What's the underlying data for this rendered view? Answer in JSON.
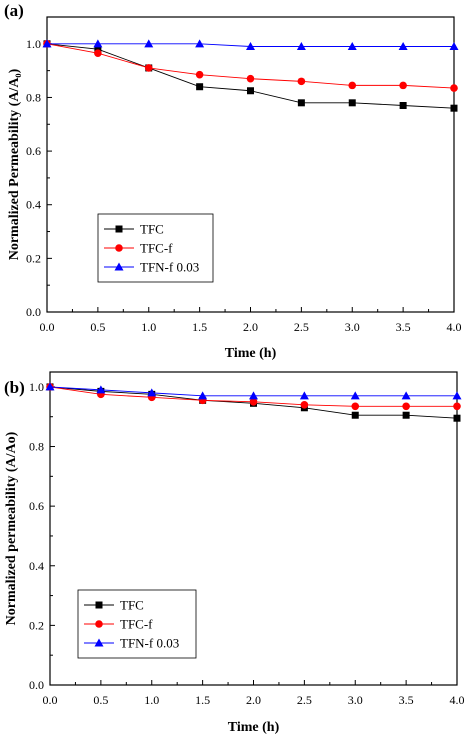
{
  "chart_data": [
    {
      "type": "line",
      "panel": "(a)",
      "xlabel": "Time (h)",
      "ylabel": "Normalized Permeability (A/A₀)",
      "xlim": [
        0,
        4
      ],
      "ylim": [
        0,
        1.1
      ],
      "x_ticks": [
        "0.0",
        "0.5",
        "1.0",
        "1.5",
        "2.0",
        "2.5",
        "3.0",
        "3.5",
        "4.0"
      ],
      "y_ticks": [
        "0.0",
        "0.2",
        "0.4",
        "0.6",
        "0.8",
        "1.0"
      ],
      "x": [
        0,
        0.5,
        1.0,
        1.5,
        2.0,
        2.5,
        3.0,
        3.5,
        4.0
      ],
      "series": [
        {
          "name": "TFC",
          "values": [
            1.0,
            0.98,
            0.91,
            0.84,
            0.825,
            0.78,
            0.78,
            0.77,
            0.76
          ],
          "color": "#000000",
          "marker": "square"
        },
        {
          "name": "TFC-f",
          "values": [
            1.0,
            0.965,
            0.91,
            0.885,
            0.87,
            0.86,
            0.845,
            0.845,
            0.835
          ],
          "color": "#ff0000",
          "marker": "circle"
        },
        {
          "name": "TFN-f 0.03",
          "values": [
            1.0,
            1.0,
            1.0,
            1.0,
            0.99,
            0.99,
            0.99,
            0.99,
            0.99
          ],
          "color": "#0000ff",
          "marker": "triangle"
        }
      ],
      "legend_position": "lower-left",
      "grid": false
    },
    {
      "type": "line",
      "panel": "(b)",
      "xlabel": "Time (h)",
      "ylabel": "Normalized permeability (A/Ao)",
      "xlim": [
        0,
        4
      ],
      "ylim": [
        0,
        1.05
      ],
      "x_ticks": [
        "0.0",
        "0.5",
        "1.0",
        "1.5",
        "2.0",
        "2.5",
        "3.0",
        "3.5",
        "4.0"
      ],
      "y_ticks": [
        "0.0",
        "0.2",
        "0.4",
        "0.6",
        "0.8",
        "1.0"
      ],
      "x": [
        0,
        0.5,
        1.0,
        1.5,
        2.0,
        2.5,
        3.0,
        3.5,
        4.0
      ],
      "series": [
        {
          "name": "TFC",
          "values": [
            1.0,
            0.985,
            0.975,
            0.955,
            0.945,
            0.93,
            0.905,
            0.905,
            0.895
          ],
          "color": "#000000",
          "marker": "square"
        },
        {
          "name": "TFC-f",
          "values": [
            1.0,
            0.975,
            0.965,
            0.955,
            0.95,
            0.94,
            0.935,
            0.935,
            0.935
          ],
          "color": "#ff0000",
          "marker": "circle"
        },
        {
          "name": "TFN-f 0.03",
          "values": [
            1.0,
            0.99,
            0.98,
            0.97,
            0.97,
            0.97,
            0.97,
            0.97,
            0.97
          ],
          "color": "#0000ff",
          "marker": "triangle"
        }
      ],
      "legend_position": "lower-left",
      "grid": false
    }
  ]
}
